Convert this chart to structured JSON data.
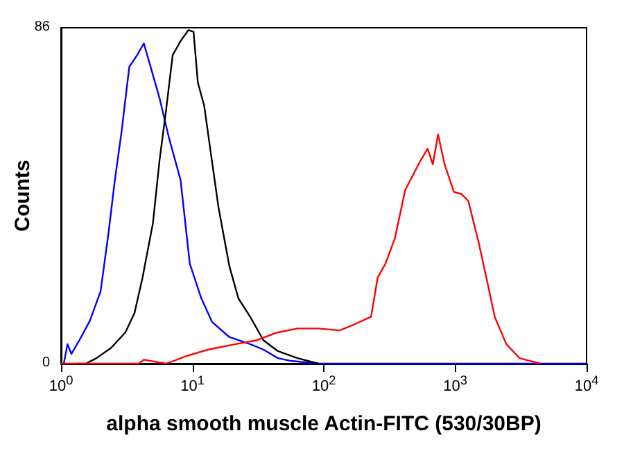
{
  "chart_data": {
    "type": "line",
    "xlabel": "alpha smooth muscle Actin-FITC (530/30BP)",
    "ylabel": "Counts",
    "log": "x",
    "xlim": [
      1,
      10000
    ],
    "ylim": [
      0,
      86
    ],
    "xticks": [
      {
        "value": 1,
        "label": "10$^{0}$"
      },
      {
        "value": 10,
        "label": "10$^{1}$"
      },
      {
        "value": 100,
        "label": "10$^{2}$"
      },
      {
        "value": 1000,
        "label": "10$^{3}$"
      },
      {
        "value": 10000,
        "label": "10$^{4}$"
      }
    ],
    "yticks": [
      0,
      86
    ],
    "grid": false,
    "marker": "none",
    "line_style": "solid",
    "series": [
      {
        "color": "#0000ff",
        "x": [
          1.05,
          1.12,
          1.2,
          1.38,
          1.66,
          2.0,
          2.29,
          2.57,
          2.88,
          3.31,
          3.8,
          4.27,
          4.9,
          5.62,
          6.61,
          8.13,
          9.55,
          11.7,
          14.1,
          19.1,
          27.5,
          34.7,
          44.7,
          56.2,
          91.2,
          10000
        ],
        "values": [
          0,
          5,
          2.5,
          6,
          11,
          18.5,
          33,
          47,
          59,
          76,
          79,
          82,
          75,
          68,
          58,
          47,
          25.6,
          16.7,
          10.7,
          6.8,
          5,
          3.6,
          1.4,
          0.7,
          0,
          0
        ]
      },
      {
        "color": "#000000",
        "x": [
          1.32,
          1.55,
          1.86,
          2.4,
          3.09,
          3.63,
          4.17,
          5.01,
          5.62,
          6.31,
          7.08,
          8.13,
          9.33,
          10.2,
          11.0,
          12.3,
          13.8,
          15.8,
          19.1,
          22.4,
          27.5,
          34.7,
          44.7,
          63.1,
          91.2
        ],
        "values": [
          0,
          0,
          1.4,
          4,
          8,
          13,
          22,
          36,
          52,
          65,
          79,
          82.6,
          85.4,
          85,
          72,
          66,
          54,
          40,
          25,
          16.7,
          12,
          6,
          3.2,
          1.4,
          0
        ]
      },
      {
        "color": "#ff0000",
        "x": [
          1,
          3.89,
          4.27,
          6.31,
          9.12,
          13.2,
          21.4,
          30.9,
          44.7,
          63.1,
          91.2,
          132,
          170,
          229,
          257,
          295,
          347,
          417,
          468,
          525,
          617,
          676,
          741,
          832,
          977,
          1120,
          1260,
          1510,
          1780,
          2000,
          2450,
          3090,
          4470
        ],
        "values": [
          0,
          0,
          1,
          0,
          2,
          3.6,
          5,
          6,
          8,
          9,
          9,
          8.5,
          10,
          12,
          22,
          25.6,
          32,
          44.5,
          47.7,
          51,
          55,
          51,
          58.7,
          51,
          44,
          43.4,
          41.6,
          31,
          20,
          12,
          5,
          1.4,
          0
        ]
      }
    ]
  }
}
